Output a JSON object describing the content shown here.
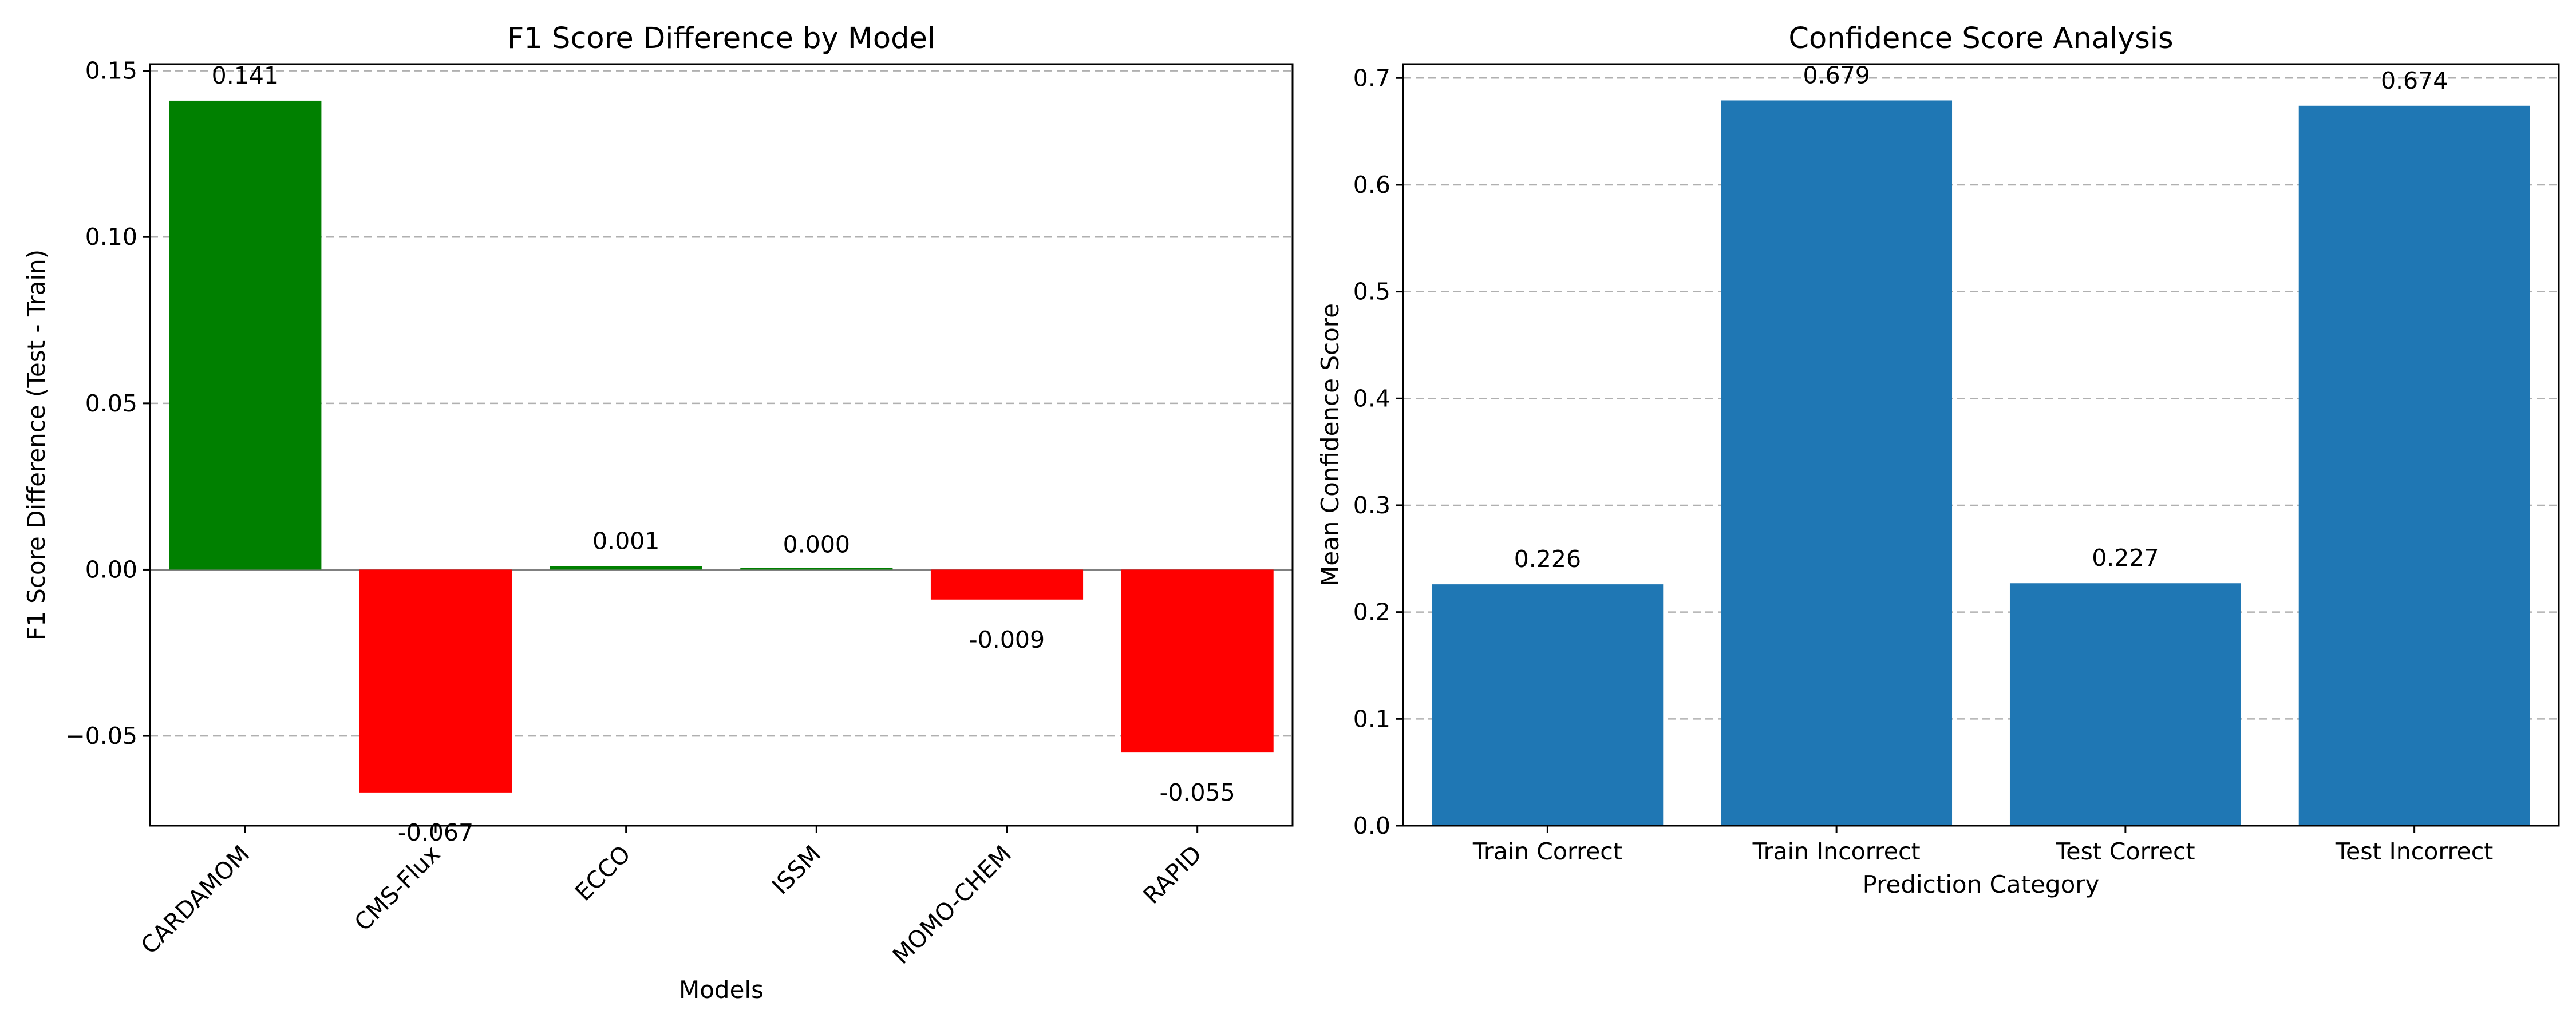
{
  "colors": {
    "positive": "#008000",
    "negative": "#ff0000",
    "bar": "#1f77b4",
    "zero_line": "#808080",
    "grid": "#b0b0b0"
  },
  "chart_data": [
    {
      "type": "bar",
      "title": "F1 Score Difference by Model",
      "xlabel": "Models",
      "ylabel": "F1 Score Difference (Test - Train)",
      "categories": [
        "CARDAMOM",
        "CMS-Flux",
        "ECCO",
        "ISSM",
        "MOMO-CHEM",
        "RAPID"
      ],
      "values": [
        0.141,
        -0.067,
        0.001,
        0.0,
        -0.009,
        -0.055
      ],
      "value_labels": [
        "0.141",
        "-0.067",
        "0.001",
        "0.000",
        "-0.009",
        "-0.055"
      ],
      "ylim": [
        -0.077,
        0.152
      ],
      "yticks": [
        -0.05,
        0.0,
        0.05,
        0.1,
        0.15
      ],
      "ytick_labels": [
        "−0.05",
        "0.00",
        "0.05",
        "0.10",
        "0.15"
      ],
      "grid": true,
      "zero_line": true,
      "bar_colors": "green when positive, red when negative"
    },
    {
      "type": "bar",
      "title": "Confidence Score Analysis",
      "xlabel": "Prediction Category",
      "ylabel": "Mean Confidence Score",
      "categories": [
        "Train Correct",
        "Train Incorrect",
        "Test Correct",
        "Test Incorrect"
      ],
      "values": [
        0.226,
        0.679,
        0.227,
        0.674
      ],
      "value_labels": [
        "0.226",
        "0.679",
        "0.227",
        "0.674"
      ],
      "ylim": [
        0,
        0.713
      ],
      "yticks": [
        0.0,
        0.1,
        0.2,
        0.3,
        0.4,
        0.5,
        0.6,
        0.7
      ],
      "ytick_labels": [
        "0.0",
        "0.1",
        "0.2",
        "0.3",
        "0.4",
        "0.5",
        "0.6",
        "0.7"
      ],
      "grid": true
    }
  ]
}
